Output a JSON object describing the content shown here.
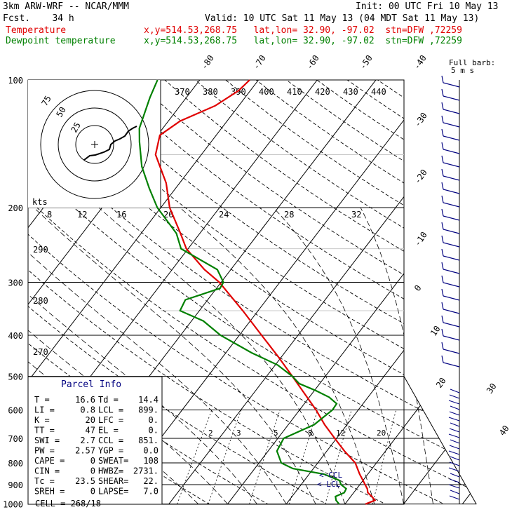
{
  "header": {
    "model": "3km ARW-WRF -- NCAR/MMM",
    "init": "Init: 00 UTC Fri 10 May 13",
    "fcst": "Fcst.    34 h",
    "valid": "Valid: 10 UTC Sat 11 May 13 (04 MDT Sat 11 May 13)",
    "temp_label": "Temperature",
    "temp_info": "x,y=514.53,268.75   lat,lon= 32.90, -97.02  stn=DFW ,72259",
    "dew_label": "Dewpoint temperature",
    "dew_info": "x,y=514.53,268.75   lat,lon= 32.90, -97.02  stn=DFW ,72259"
  },
  "colors": {
    "temperature": "#e00000",
    "dewpoint": "#008000",
    "wind": "#000080"
  },
  "chart_data": {
    "type": "line",
    "pressure_levels": [
      100,
      200,
      300,
      400,
      500,
      600,
      700,
      800,
      900,
      1000
    ],
    "temp_ticks_top": [
      "-80",
      "-70",
      "-60",
      "-50",
      "-40"
    ],
    "temp_ticks_right": [
      "-30",
      "-20",
      "-10",
      "0",
      "10",
      "20",
      "30",
      "40"
    ],
    "theta_labels": [
      "370",
      "380",
      "390",
      "400",
      "410",
      "420",
      "430",
      "440"
    ],
    "theta_left_labels": [
      "290",
      "280",
      "270"
    ],
    "mixing_ratio_mid": [
      "8",
      "12",
      "16",
      "20",
      "24",
      "28",
      "32"
    ],
    "mixing_ratio_low": [
      "2",
      "3",
      "5",
      "8",
      "12",
      "20"
    ],
    "series": [
      {
        "name": "Temperature",
        "points": [
          [
            1000,
            23.5
          ],
          [
            980,
            24.6
          ],
          [
            960,
            23.6
          ],
          [
            940,
            22.4
          ],
          [
            920,
            21.8
          ],
          [
            900,
            20.9
          ],
          [
            880,
            20.0
          ],
          [
            850,
            18.6
          ],
          [
            800,
            16.4
          ],
          [
            750,
            13.0
          ],
          [
            700,
            9.7
          ],
          [
            650,
            6.2
          ],
          [
            600,
            2.8
          ],
          [
            550,
            -1.2
          ],
          [
            500,
            -5.6
          ],
          [
            450,
            -10.5
          ],
          [
            400,
            -16.2
          ],
          [
            350,
            -22.6
          ],
          [
            300,
            -30.3
          ],
          [
            280,
            -34.5
          ],
          [
            250,
            -40.3
          ],
          [
            230,
            -43.3
          ],
          [
            200,
            -48.5
          ],
          [
            175,
            -52.3
          ],
          [
            150,
            -57.8
          ],
          [
            135,
            -59.6
          ],
          [
            125,
            -58.0
          ],
          [
            115,
            -54.0
          ],
          [
            106,
            -52.0
          ],
          [
            100,
            -51.5
          ]
        ]
      },
      {
        "name": "Dewpoint temperature",
        "points": [
          [
            1000,
            19.0
          ],
          [
            980,
            18.0
          ],
          [
            960,
            17.4
          ],
          [
            940,
            18.4
          ],
          [
            920,
            18.2
          ],
          [
            900,
            16.8
          ],
          [
            880,
            16.0
          ],
          [
            850,
            12.5
          ],
          [
            825,
            6.5
          ],
          [
            800,
            3.8
          ],
          [
            750,
            1.5
          ],
          [
            700,
            1.0
          ],
          [
            650,
            4.4
          ],
          [
            600,
            5.6
          ],
          [
            580,
            5.5
          ],
          [
            560,
            3.4
          ],
          [
            540,
            0.2
          ],
          [
            520,
            -3.5
          ],
          [
            500,
            -5.6
          ],
          [
            470,
            -9.6
          ],
          [
            440,
            -15.6
          ],
          [
            400,
            -23.2
          ],
          [
            370,
            -28.0
          ],
          [
            350,
            -33.3
          ],
          [
            330,
            -33.8
          ],
          [
            310,
            -29.4
          ],
          [
            300,
            -29.6
          ],
          [
            280,
            -32.3
          ],
          [
            250,
            -41.2
          ],
          [
            230,
            -44.0
          ],
          [
            200,
            -50.6
          ],
          [
            180,
            -54.5
          ],
          [
            160,
            -58.6
          ],
          [
            140,
            -62.2
          ],
          [
            130,
            -64.0
          ],
          [
            110,
            -66.2
          ],
          [
            100,
            -67.2
          ]
        ]
      }
    ],
    "annotations": {
      "ccl": "<-CCL",
      "lcl": "<-LCL"
    }
  },
  "hodograph": {
    "units": "kts",
    "ring_labels": [
      "75",
      "50",
      "25"
    ],
    "speed_ticks": [
      "8",
      "12",
      "16",
      "20",
      "24",
      "28",
      "32"
    ]
  },
  "wind_legend": {
    "title": "Full barb:",
    "value": "5 m s"
  },
  "parcel": {
    "title": "Parcel Info",
    "rows": [
      [
        "T   =",
        "16.6",
        "Td  =",
        "14.4"
      ],
      [
        "LI  =",
        "0.8",
        "LCL =",
        "899."
      ],
      [
        "K   =",
        "20",
        "LFC =",
        "0."
      ],
      [
        "TT  =",
        "47",
        "EL  =",
        "0."
      ],
      [
        "SWI =",
        "2.7",
        "CCL =",
        "851."
      ],
      [
        "PW  =",
        "2.57",
        "YGP =",
        "0.0"
      ],
      [
        "CAPE =",
        "0",
        "SWEAT=",
        "108"
      ],
      [
        "CIN  =",
        "0",
        "HWBZ=",
        "2731."
      ],
      [
        "Tc   =",
        "23.5",
        "SHEAR=",
        "22."
      ],
      [
        "SREH =",
        "0",
        "LAPSE=",
        "7.0"
      ]
    ],
    "cell": "CELL = 268/18"
  }
}
